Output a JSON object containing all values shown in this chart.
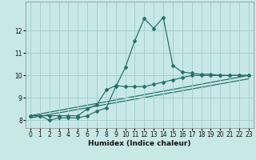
{
  "xlabel": "Humidex (Indice chaleur)",
  "bg_color": "#c8e8e8",
  "line_color": "#2a7068",
  "grid_color": "#a8d0d0",
  "xlim": [
    -0.5,
    23.5
  ],
  "ylim": [
    7.65,
    13.3
  ],
  "yticks": [
    8,
    9,
    10,
    11,
    12
  ],
  "xticks": [
    0,
    1,
    2,
    3,
    4,
    5,
    6,
    7,
    8,
    9,
    10,
    11,
    12,
    13,
    14,
    15,
    16,
    17,
    18,
    19,
    20,
    21,
    22,
    23
  ],
  "series1_x": [
    0,
    1,
    2,
    3,
    4,
    5,
    6,
    7,
    8,
    9,
    10,
    11,
    12,
    13,
    14,
    15,
    16,
    17,
    18,
    19,
    20,
    21,
    22,
    23
  ],
  "series1_y": [
    8.2,
    8.2,
    8.0,
    8.1,
    8.1,
    8.1,
    8.2,
    8.4,
    8.55,
    9.5,
    10.35,
    11.55,
    12.55,
    12.1,
    12.6,
    10.45,
    10.15,
    10.1,
    10.05,
    10.05,
    10.0,
    10.0,
    10.0,
    10.0
  ],
  "series2_x": [
    0,
    1,
    2,
    3,
    4,
    5,
    6,
    7,
    8,
    9,
    10,
    11,
    12,
    13,
    14,
    15,
    16,
    17,
    18,
    19,
    20,
    21,
    22,
    23
  ],
  "series2_y": [
    8.2,
    8.2,
    8.2,
    8.2,
    8.2,
    8.2,
    8.5,
    8.7,
    9.35,
    9.55,
    9.5,
    9.5,
    9.5,
    9.6,
    9.7,
    9.8,
    9.9,
    10.0,
    10.0,
    10.0,
    10.0,
    10.0,
    10.0,
    10.0
  ],
  "line3_x": [
    0,
    23
  ],
  "line3_y": [
    8.2,
    10.0
  ],
  "line4_x": [
    0,
    23
  ],
  "line4_y": [
    8.1,
    9.85
  ]
}
